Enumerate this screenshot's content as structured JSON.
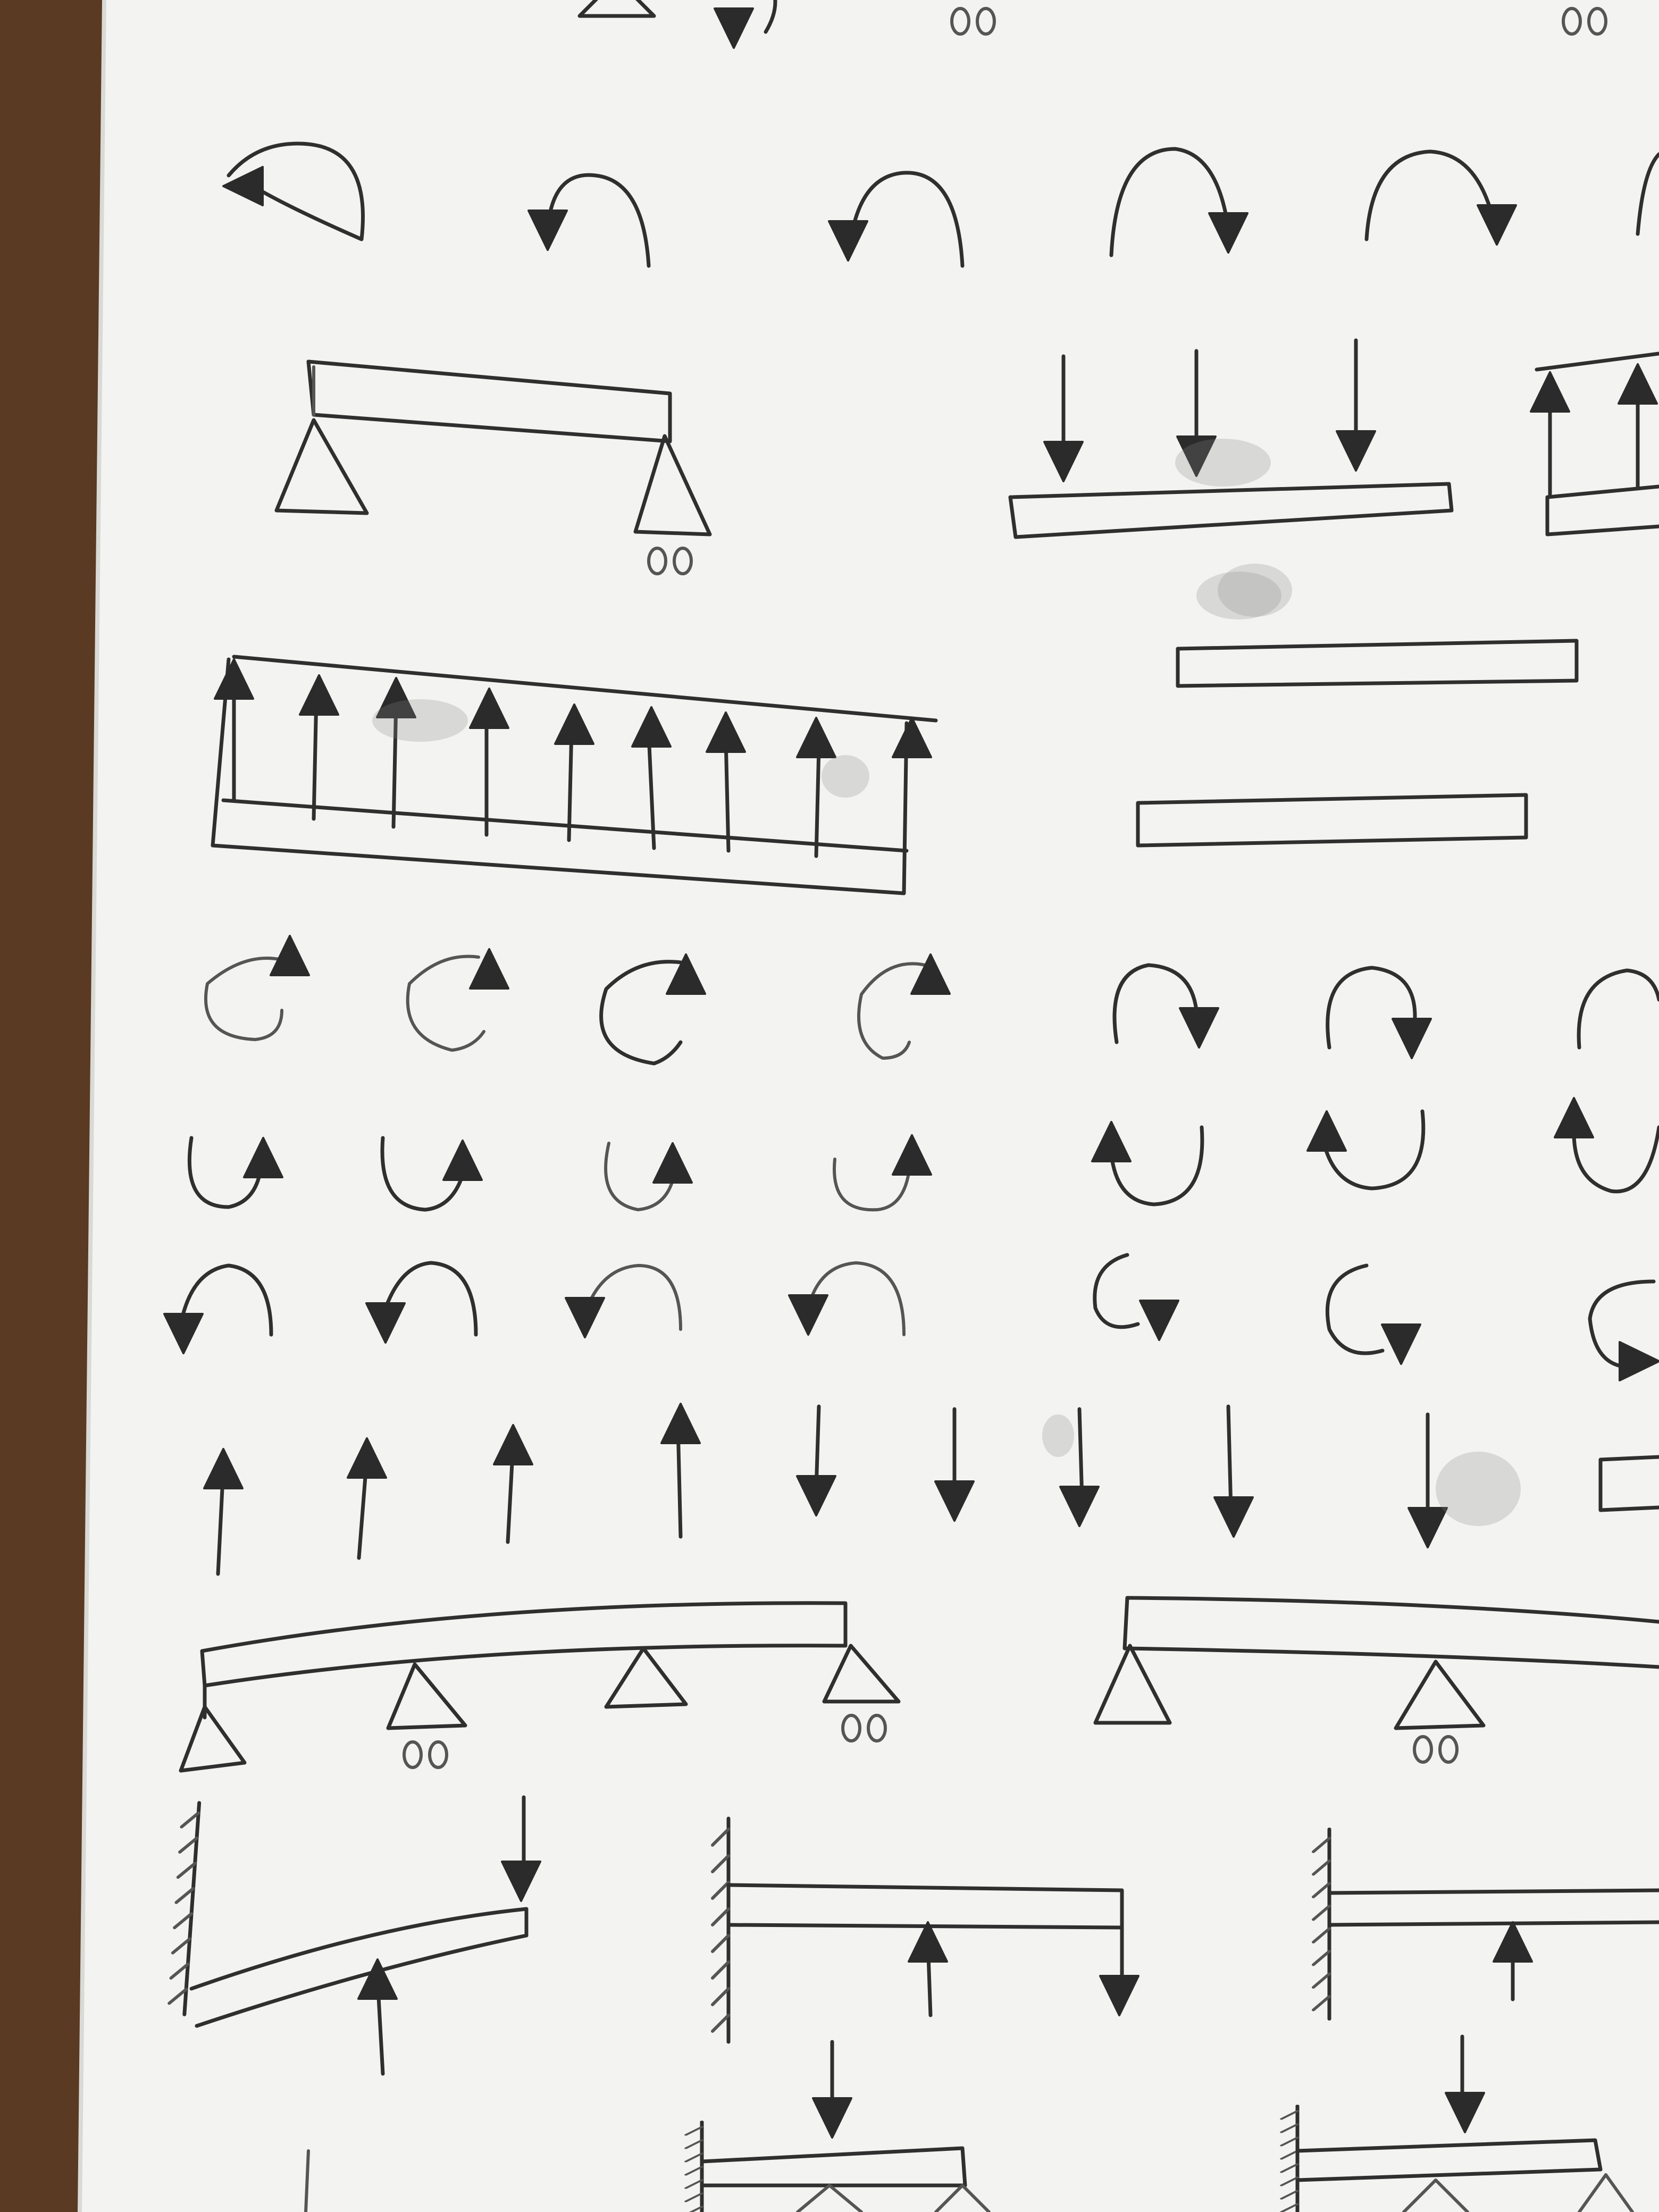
{
  "colors": {
    "wood": "#5a3a22",
    "paper": "#f3f3f1",
    "pencil": "#2f2f2f"
  },
  "symbol_groups": [
    "curved-moment-arrows-top",
    "simply-supported-beam",
    "point-loads-on-beam",
    "distributed-upward-load-beam",
    "empty-beams",
    "circular-moment-arrows",
    "vertical-force-arrows",
    "continuous-beams",
    "cantilever-beams"
  ]
}
